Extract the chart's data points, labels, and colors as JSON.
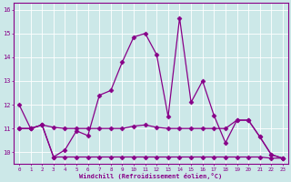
{
  "xlabel": "Windchill (Refroidissement éolien,°C)",
  "ylabel": "",
  "xlim": [
    -0.5,
    23.5
  ],
  "ylim": [
    9.5,
    16.3
  ],
  "xticks": [
    0,
    1,
    2,
    3,
    4,
    5,
    6,
    7,
    8,
    9,
    10,
    11,
    12,
    13,
    14,
    15,
    16,
    17,
    18,
    19,
    20,
    21,
    22,
    23
  ],
  "yticks": [
    10,
    11,
    12,
    13,
    14,
    15,
    16
  ],
  "bg_color": "#cce8e8",
  "line_color": "#880088",
  "grid_color": "#ffffff",
  "line1_x": [
    0,
    1,
    2,
    3,
    4,
    5,
    6,
    7,
    8,
    9,
    10,
    11,
    12,
    13,
    14,
    15,
    16,
    17,
    18,
    19,
    20,
    21,
    22,
    23
  ],
  "line1_y": [
    12.0,
    11.0,
    11.15,
    9.8,
    10.1,
    10.9,
    10.7,
    12.4,
    12.6,
    13.8,
    14.85,
    15.0,
    14.1,
    11.5,
    15.65,
    12.1,
    13.0,
    11.55,
    10.4,
    11.35,
    11.35,
    10.65,
    9.9,
    9.75
  ],
  "line2_x": [
    0,
    1,
    2,
    3,
    4,
    5,
    6,
    7,
    8,
    9,
    10,
    11,
    12,
    13,
    14,
    15,
    16,
    17,
    18,
    19,
    20,
    21,
    22,
    23
  ],
  "line2_y": [
    11.0,
    11.0,
    11.15,
    11.05,
    11.0,
    11.0,
    11.0,
    11.0,
    11.0,
    11.0,
    11.1,
    11.15,
    11.05,
    11.0,
    11.0,
    11.0,
    11.0,
    11.0,
    11.0,
    11.35,
    11.35,
    10.65,
    9.9,
    9.75
  ],
  "line3_x": [
    0,
    1,
    2,
    3,
    4,
    5,
    6,
    7,
    8,
    9,
    10,
    11,
    12,
    13,
    14,
    15,
    16,
    17,
    18,
    19,
    20,
    21,
    22,
    23
  ],
  "line3_y": [
    11.0,
    11.0,
    11.15,
    9.8,
    9.8,
    9.8,
    9.8,
    9.8,
    9.8,
    9.8,
    9.8,
    9.8,
    9.8,
    9.8,
    9.8,
    9.8,
    9.8,
    9.8,
    9.8,
    9.8,
    9.8,
    9.8,
    9.75,
    9.75
  ]
}
